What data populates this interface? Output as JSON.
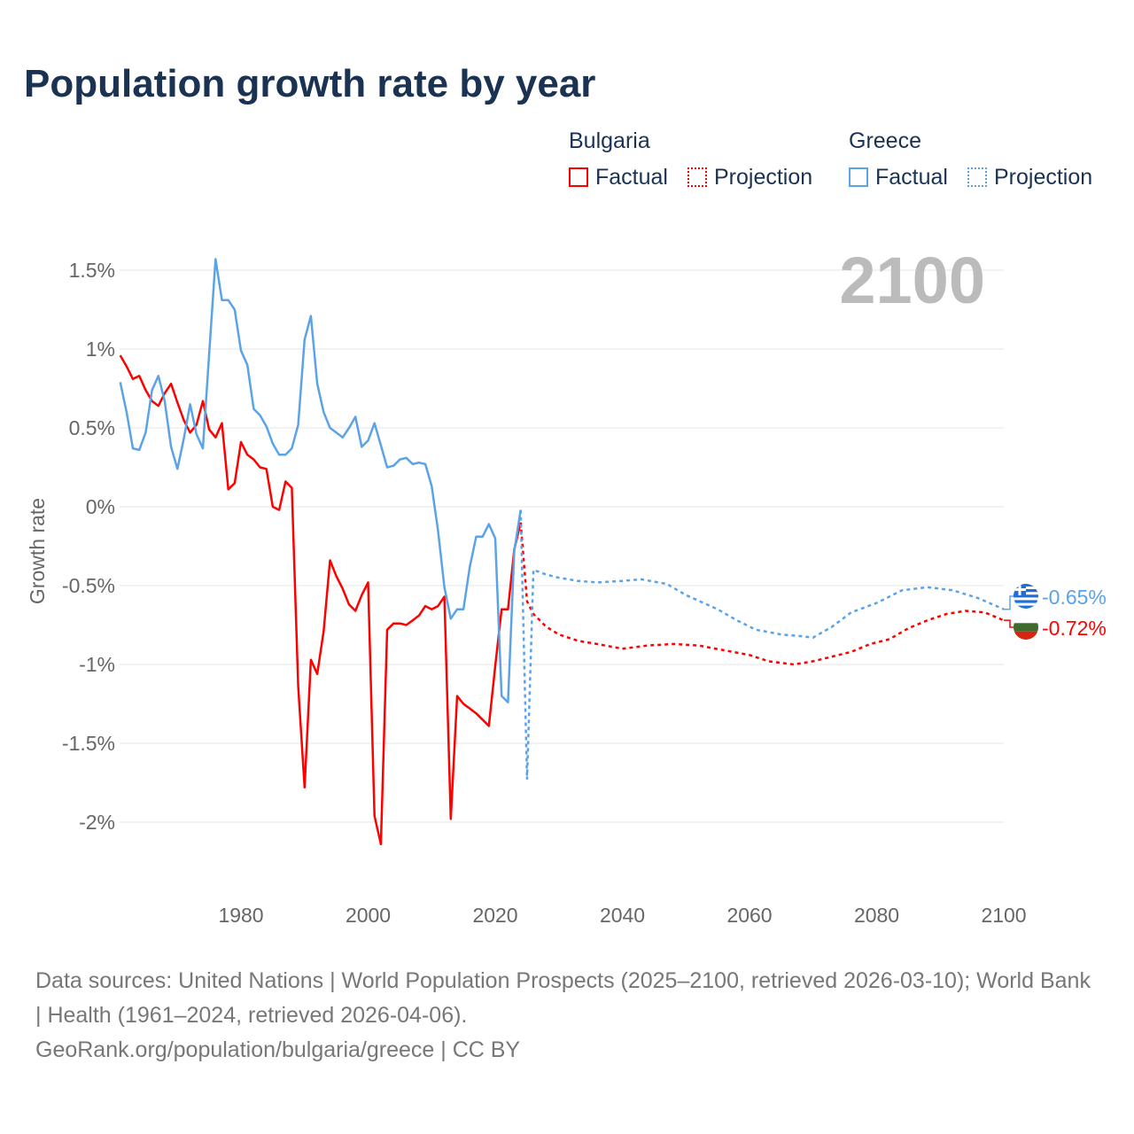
{
  "title": "Population growth rate by year",
  "legend": {
    "groups": [
      {
        "name": "Bulgaria",
        "factual": "Factual",
        "projection": "Projection",
        "color": "#ff0000"
      },
      {
        "name": "Greece",
        "factual": "Factual",
        "projection": "Projection",
        "color": "#5ba3e8"
      }
    ]
  },
  "year_label": "2100",
  "footer": {
    "sources": "Data sources: United Nations | World Population Prospects (2025–2100, retrieved 2026-03-10); World Bank | Health (1961–2024, retrieved 2026-04-06).",
    "credit": "GeoRank.org/population/bulgaria/greece | CC BY"
  },
  "chart_data": {
    "type": "line",
    "title": "Population growth rate by year",
    "ylabel": "Growth rate",
    "xlabel": "",
    "xlim": [
      1961,
      2100
    ],
    "ylim": [
      -2.35,
      1.7
    ],
    "xticks": [
      1980,
      2000,
      2020,
      2040,
      2060,
      2080,
      2100
    ],
    "yticks": [
      {
        "v": 1.5,
        "label": "1.5%"
      },
      {
        "v": 1,
        "label": "1%"
      },
      {
        "v": 0.5,
        "label": "0.5%"
      },
      {
        "v": 0,
        "label": "0%"
      },
      {
        "v": -0.5,
        "label": "-0.5%"
      },
      {
        "v": -1,
        "label": "-1%"
      },
      {
        "v": -1.5,
        "label": "-1.5%"
      },
      {
        "v": -2,
        "label": "-2%"
      }
    ],
    "grid": true,
    "series": [
      {
        "name": "Bulgaria",
        "color": "#ff0000",
        "end_label": "-0.72%",
        "factual": [
          [
            1961,
            0.96
          ],
          [
            1962,
            0.89
          ],
          [
            1963,
            0.81
          ],
          [
            1964,
            0.83
          ],
          [
            1965,
            0.74
          ],
          [
            1966,
            0.67
          ],
          [
            1967,
            0.64
          ],
          [
            1968,
            0.72
          ],
          [
            1969,
            0.78
          ],
          [
            1970,
            0.66
          ],
          [
            1971,
            0.55
          ],
          [
            1972,
            0.47
          ],
          [
            1973,
            0.52
          ],
          [
            1974,
            0.67
          ],
          [
            1975,
            0.49
          ],
          [
            1976,
            0.44
          ],
          [
            1977,
            0.53
          ],
          [
            1978,
            0.11
          ],
          [
            1979,
            0.15
          ],
          [
            1980,
            0.41
          ],
          [
            1981,
            0.33
          ],
          [
            1982,
            0.3
          ],
          [
            1983,
            0.25
          ],
          [
            1984,
            0.24
          ],
          [
            1985,
            0.0
          ],
          [
            1986,
            -0.02
          ],
          [
            1987,
            0.16
          ],
          [
            1988,
            0.12
          ],
          [
            1989,
            -1.14
          ],
          [
            1990,
            -1.78
          ],
          [
            1991,
            -0.97
          ],
          [
            1992,
            -1.06
          ],
          [
            1993,
            -0.79
          ],
          [
            1994,
            -0.34
          ],
          [
            1995,
            -0.44
          ],
          [
            1996,
            -0.52
          ],
          [
            1997,
            -0.62
          ],
          [
            1998,
            -0.66
          ],
          [
            1999,
            -0.56
          ],
          [
            2000,
            -0.48
          ],
          [
            2001,
            -1.96
          ],
          [
            2002,
            -2.14
          ],
          [
            2003,
            -0.78
          ],
          [
            2004,
            -0.74
          ],
          [
            2005,
            -0.74
          ],
          [
            2006,
            -0.75
          ],
          [
            2007,
            -0.72
          ],
          [
            2008,
            -0.69
          ],
          [
            2009,
            -0.63
          ],
          [
            2010,
            -0.65
          ],
          [
            2011,
            -0.63
          ],
          [
            2012,
            -0.57
          ],
          [
            2013,
            -1.98
          ],
          [
            2014,
            -1.2
          ],
          [
            2015,
            -1.25
          ],
          [
            2016,
            -1.28
          ],
          [
            2017,
            -1.31
          ],
          [
            2018,
            -1.35
          ],
          [
            2019,
            -1.39
          ],
          [
            2020,
            -1.01
          ],
          [
            2021,
            -0.65
          ],
          [
            2022,
            -0.65
          ],
          [
            2023,
            -0.27
          ],
          [
            2024,
            -0.1
          ]
        ],
        "projection": [
          [
            2024,
            -0.1
          ],
          [
            2025,
            -0.6
          ],
          [
            2026,
            -0.68
          ],
          [
            2028,
            -0.76
          ],
          [
            2030,
            -0.81
          ],
          [
            2033,
            -0.85
          ],
          [
            2036,
            -0.87
          ],
          [
            2040,
            -0.9
          ],
          [
            2044,
            -0.88
          ],
          [
            2048,
            -0.87
          ],
          [
            2052,
            -0.88
          ],
          [
            2056,
            -0.91
          ],
          [
            2060,
            -0.94
          ],
          [
            2063,
            -0.98
          ],
          [
            2067,
            -1.0
          ],
          [
            2070,
            -0.98
          ],
          [
            2073,
            -0.95
          ],
          [
            2076,
            -0.92
          ],
          [
            2079,
            -0.87
          ],
          [
            2082,
            -0.84
          ],
          [
            2085,
            -0.77
          ],
          [
            2088,
            -0.72
          ],
          [
            2091,
            -0.68
          ],
          [
            2094,
            -0.66
          ],
          [
            2097,
            -0.67
          ],
          [
            2100,
            -0.72
          ]
        ]
      },
      {
        "name": "Greece",
        "color": "#5ba3e8",
        "end_label": "-0.65%",
        "factual": [
          [
            1961,
            0.79
          ],
          [
            1962,
            0.6
          ],
          [
            1963,
            0.37
          ],
          [
            1964,
            0.36
          ],
          [
            1965,
            0.47
          ],
          [
            1966,
            0.74
          ],
          [
            1967,
            0.83
          ],
          [
            1968,
            0.67
          ],
          [
            1969,
            0.38
          ],
          [
            1970,
            0.24
          ],
          [
            1971,
            0.43
          ],
          [
            1972,
            0.65
          ],
          [
            1973,
            0.46
          ],
          [
            1974,
            0.37
          ],
          [
            1975,
            0.97
          ],
          [
            1976,
            1.57
          ],
          [
            1977,
            1.31
          ],
          [
            1978,
            1.31
          ],
          [
            1979,
            1.25
          ],
          [
            1980,
            0.99
          ],
          [
            1981,
            0.9
          ],
          [
            1982,
            0.62
          ],
          [
            1983,
            0.58
          ],
          [
            1984,
            0.51
          ],
          [
            1985,
            0.4
          ],
          [
            1986,
            0.33
          ],
          [
            1987,
            0.33
          ],
          [
            1988,
            0.37
          ],
          [
            1989,
            0.52
          ],
          [
            1990,
            1.06
          ],
          [
            1991,
            1.21
          ],
          [
            1992,
            0.78
          ],
          [
            1993,
            0.6
          ],
          [
            1994,
            0.5
          ],
          [
            1995,
            0.47
          ],
          [
            1996,
            0.44
          ],
          [
            1997,
            0.5
          ],
          [
            1998,
            0.57
          ],
          [
            1999,
            0.38
          ],
          [
            2000,
            0.42
          ],
          [
            2001,
            0.53
          ],
          [
            2002,
            0.39
          ],
          [
            2003,
            0.25
          ],
          [
            2004,
            0.26
          ],
          [
            2005,
            0.3
          ],
          [
            2006,
            0.31
          ],
          [
            2007,
            0.27
          ],
          [
            2008,
            0.28
          ],
          [
            2009,
            0.27
          ],
          [
            2010,
            0.13
          ],
          [
            2011,
            -0.15
          ],
          [
            2012,
            -0.51
          ],
          [
            2013,
            -0.71
          ],
          [
            2014,
            -0.65
          ],
          [
            2015,
            -0.65
          ],
          [
            2016,
            -0.38
          ],
          [
            2017,
            -0.19
          ],
          [
            2018,
            -0.19
          ],
          [
            2019,
            -0.11
          ],
          [
            2020,
            -0.2
          ],
          [
            2021,
            -1.2
          ],
          [
            2022,
            -1.24
          ],
          [
            2023,
            -0.28
          ],
          [
            2024,
            -0.02
          ]
        ],
        "projection": [
          [
            2024,
            -0.02
          ],
          [
            2025,
            -1.73
          ],
          [
            2026,
            -0.4
          ],
          [
            2028,
            -0.43
          ],
          [
            2030,
            -0.45
          ],
          [
            2033,
            -0.47
          ],
          [
            2036,
            -0.48
          ],
          [
            2040,
            -0.47
          ],
          [
            2043,
            -0.46
          ],
          [
            2047,
            -0.49
          ],
          [
            2050,
            -0.56
          ],
          [
            2055,
            -0.65
          ],
          [
            2058,
            -0.72
          ],
          [
            2061,
            -0.78
          ],
          [
            2065,
            -0.81
          ],
          [
            2068,
            -0.82
          ],
          [
            2070,
            -0.83
          ],
          [
            2073,
            -0.76
          ],
          [
            2076,
            -0.67
          ],
          [
            2080,
            -0.61
          ],
          [
            2084,
            -0.53
          ],
          [
            2088,
            -0.51
          ],
          [
            2092,
            -0.53
          ],
          [
            2096,
            -0.58
          ],
          [
            2100,
            -0.65
          ]
        ]
      }
    ]
  }
}
